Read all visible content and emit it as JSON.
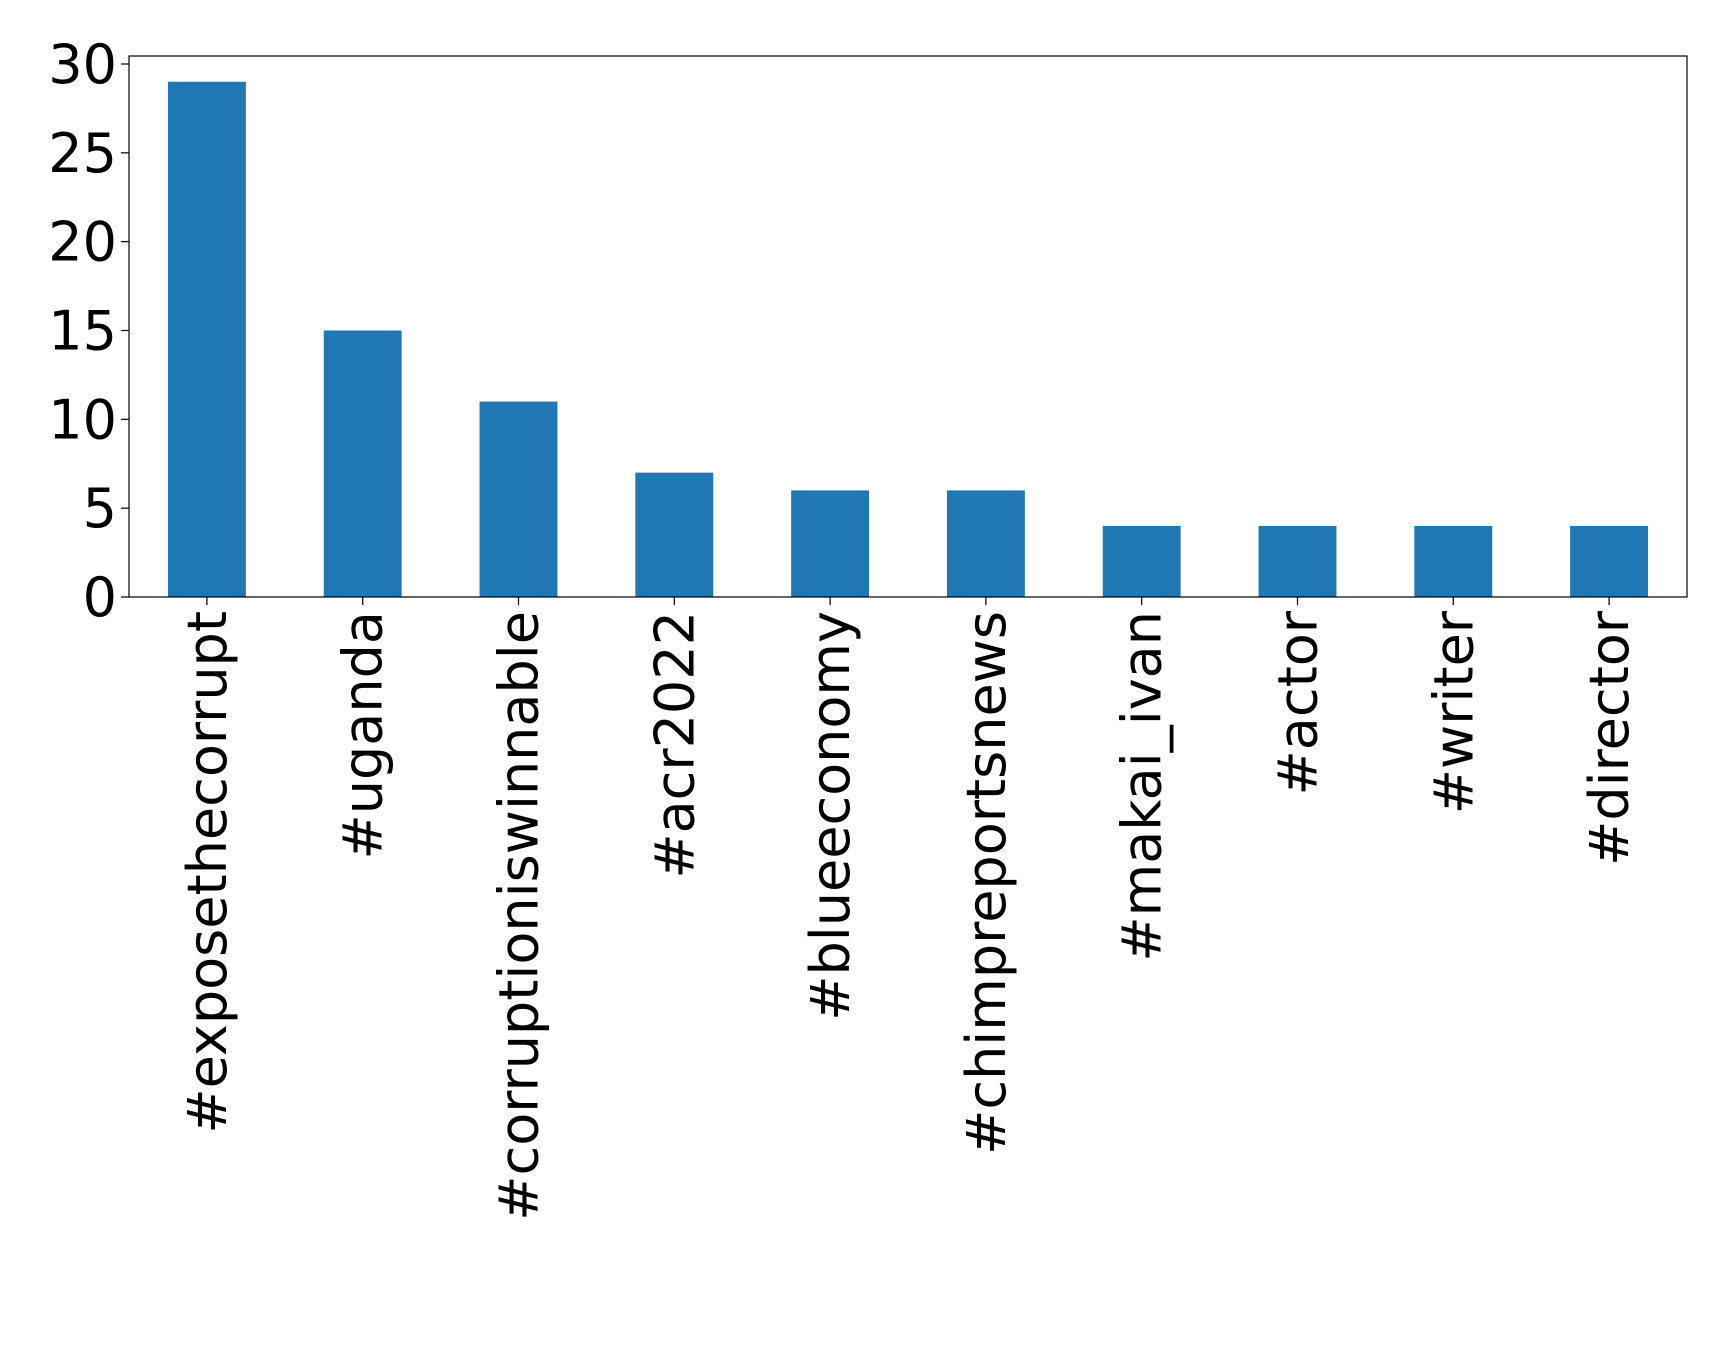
{
  "chart_data": {
    "type": "bar",
    "title": "",
    "xlabel": "",
    "ylabel": "",
    "categories": [
      "#exposethecorrupt",
      "#uganda",
      "#corruptioniswinnable",
      "#acr2022",
      "#blueeconomy",
      "#chimpreportsnews",
      "#makai_ivan",
      "#actor",
      "#writer",
      "#director"
    ],
    "values": [
      29,
      15,
      11,
      7,
      6,
      6,
      4,
      4,
      4,
      4
    ],
    "ylim": [
      0,
      30.45
    ],
    "yticks": [
      0,
      5,
      10,
      15,
      20,
      25,
      30
    ],
    "grid": false,
    "legend": "none",
    "bar_color": "#1f77b4",
    "axis_color": "#000000"
  }
}
